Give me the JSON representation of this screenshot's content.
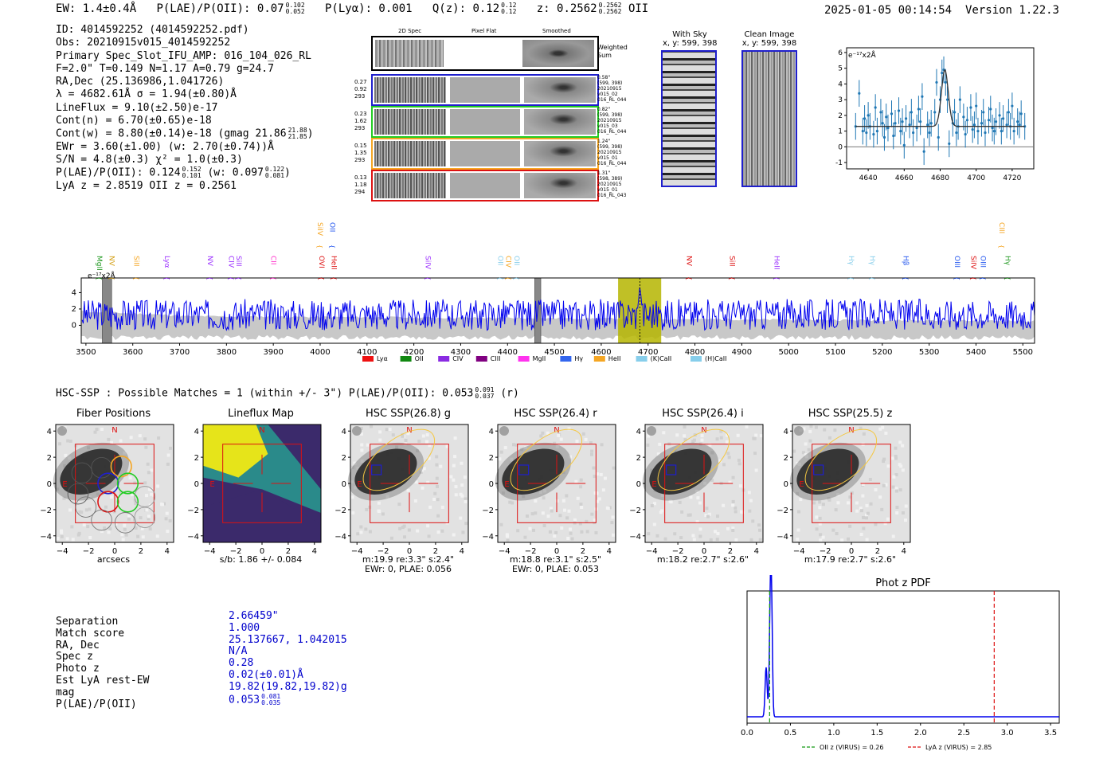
{
  "header": {
    "ew": "EW: 1.4±0.4Å",
    "plae_prefix": "P(LAE)/P(OII): 0.07",
    "plae_hi": "0.102",
    "plae_lo": "0.052",
    "plya": "P(Lyα): 0.001",
    "qz_prefix": "Q(z): 0.12",
    "qz_hi": "0.12",
    "qz_lo": "0.12",
    "z_prefix": "z: 0.2562",
    "z_hi": "0.2562",
    "z_lo": "0.2562",
    "z_line": "OII",
    "timestamp": "2025-01-05 00:14:54",
    "version": "Version 1.22.3"
  },
  "info": {
    "lines": [
      "ID: 4014592252 (4014592252.pdf)",
      "Obs: 20210915v015_4014592252",
      "Primary Spec_Slot_IFU_AMP: 016_104_026_RL",
      "F=2.0\"  T=0.149  N=1.17  A=0.79  g=24.7",
      "RA,Dec (25.136986,1.041726)",
      "λ = 4682.61Å  σ = 1.94(±0.80)Å",
      "LineFlux = 9.10(±2.50)e-17",
      "Cont(n) = 6.70(±0.65)e-18"
    ],
    "contw_prefix": "Cont(w) = 8.80(±0.14)e-18 (gmag 21.86",
    "contw_hi": "21.88",
    "contw_lo": "21.85",
    "contw_suffix": ")",
    "ewr": "EWr = 3.60(±1.00) (w: 2.70(±0.74))Å",
    "sn": "S/N = 4.8(±0.3)  χ² = 1.0(±0.3)",
    "plae2_prefix": "P(LAE)/P(OII): 0.124",
    "plae2_hi": "0.152",
    "plae2_lo": "0.101",
    "plae2_mid": "(w: 0.097",
    "plae2_hi2": "0.122",
    "plae2_lo2": "0.081",
    "plae2_suffix": ")",
    "lyaz": "LyA z = 2.8519  OII z = 0.2561"
  },
  "cutouts": {
    "col_2d": "2D Spec",
    "col_flat": "Pixel Flat",
    "col_smooth": "Smoothed",
    "weighted": "Weighted Sum",
    "rows": [
      {
        "l1": "0.27",
        "l2": "0.92",
        "l3": "293",
        "r1": "0.58\"",
        "r2": "(599, 398)",
        "r3": "20210915",
        "r4": "v015_02",
        "r5": "016_RL_044",
        "color": "#1f1fcc"
      },
      {
        "l1": "0.23",
        "l2": "1.62",
        "l3": "293",
        "r1": "0.82\"",
        "r2": "(599, 398)",
        "r3": "20210915",
        "r4": "v015_03",
        "r5": "016_RL_044",
        "color": "#22cc22"
      },
      {
        "l1": "0.15",
        "l2": "1.35",
        "l3": "293",
        "r1": "1.24\"",
        "r2": "(599, 398)",
        "r3": "20210915",
        "r4": "v015_01",
        "r5": "016_RL_044",
        "color": "#f5a623"
      },
      {
        "l1": "0.13",
        "l2": "1.18",
        "l3": "294",
        "r1": "1.31\"",
        "r2": "(598, 389)",
        "r3": "20210915",
        "r4": "v015_01",
        "r5": "016_RL_043",
        "color": "#dd1111"
      }
    ],
    "with_sky_title": "With Sky",
    "with_sky_xy": "x, y: 599, 398",
    "clean_title": "Clean Image",
    "clean_xy": "x, y: 599, 398"
  },
  "line_plot": {
    "ylabel": "e⁻¹⁷x2Å",
    "xticks": [
      "4640",
      "4660",
      "4680",
      "4700",
      "4720"
    ],
    "yticks": [
      "6",
      "5",
      "4",
      "3",
      "2",
      "1",
      "0",
      "-1"
    ],
    "xlim": [
      4628,
      4732
    ],
    "ylim": [
      -1.4,
      6.3
    ],
    "points_x": [
      4633,
      4635,
      4637,
      4638,
      4639,
      4640,
      4641,
      4643,
      4644,
      4645,
      4647,
      4648,
      4649,
      4650,
      4651,
      4653,
      4654,
      4655,
      4657,
      4658,
      4659,
      4660,
      4661,
      4663,
      4664,
      4665,
      4667,
      4668,
      4669,
      4670,
      4671,
      4673,
      4674,
      4675,
      4677,
      4678,
      4679,
      4680,
      4681,
      4682,
      4683,
      4684,
      4685,
      4687,
      4688,
      4689,
      4690,
      4691,
      4693,
      4694,
      4695,
      4697,
      4698,
      4699,
      4700,
      4701,
      4703,
      4704,
      4705,
      4707,
      4708,
      4709,
      4710,
      4711,
      4713,
      4714,
      4715,
      4717,
      4718,
      4719,
      4720,
      4721,
      4723,
      4724,
      4725,
      4727
    ],
    "points_y": [
      1.3,
      3.4,
      1.0,
      1.8,
      0.9,
      2.0,
      1.3,
      0.8,
      2.5,
      1.0,
      2.2,
      1.5,
      0.6,
      1.9,
      1.2,
      2.1,
      0.7,
      1.5,
      2.3,
      1.0,
      1.6,
      0.1,
      1.8,
      1.4,
      2.2,
      0.9,
      1.2,
      2.4,
      1.6,
      3.2,
      -0.3,
      1.4,
      0.9,
      1.5,
      2.2,
      4.1,
      0.6,
      3.0,
      4.7,
      4.9,
      4.1,
      3.0,
      0.2,
      1.5,
      2.2,
      0.9,
      1.3,
      3.0,
      1.9,
      0.8,
      1.7,
      2.5,
      1.1,
      1.4,
      2.6,
      1.0,
      1.5,
      2.2,
      0.9,
      1.7,
      2.4,
      1.2,
      1.0,
      1.6,
      2.0,
      1.0,
      1.8,
      1.4,
      2.2,
      1.3,
      2.6,
      1.0,
      1.6,
      1.4,
      2.1,
      1.3
    ],
    "fit_baseline": 1.3,
    "fit_peak": 4.9,
    "fit_center": 4682.6,
    "fit_sigma": 1.9
  },
  "full_spec": {
    "ylabel": "e⁻¹⁷x2Å",
    "xticks": [
      "3500",
      "3600",
      "3700",
      "3800",
      "3900",
      "4000",
      "4100",
      "4200",
      "4300",
      "4400",
      "4500",
      "4600",
      "4700",
      "4800",
      "4900",
      "5000",
      "5100",
      "5200",
      "5300",
      "5400",
      "5500"
    ],
    "yticks": [
      "4",
      "2",
      "0"
    ],
    "xlim": [
      3490,
      5525
    ],
    "ylim": [
      -2.2,
      5.8
    ],
    "highlight_range": [
      4636,
      4728
    ],
    "line_center": 4682.6,
    "masked": [
      [
        3535,
        3555
      ],
      [
        4458,
        4471
      ]
    ],
    "top_labels": [
      {
        "t": "MgII",
        "x": 3519,
        "c": "#229922",
        "row": 0
      },
      {
        "t": "NV",
        "x": 3545,
        "c": "#d4a017",
        "row": 0
      },
      {
        "t": "SiII",
        "x": 3598,
        "c": "#f5a623",
        "row": 0
      },
      {
        "t": "Lyα",
        "x": 3663,
        "c": "#9b30ff",
        "row": 0
      },
      {
        "t": "NV",
        "x": 3755,
        "c": "#9b30ff",
        "row": 0
      },
      {
        "t": "CIV",
        "x": 3800,
        "c": "#9b30ff",
        "row": 0
      },
      {
        "t": "SiII",
        "x": 3816,
        "c": "#9b30ff",
        "row": 0
      },
      {
        "t": "CII",
        "x": 3890,
        "c": "#ff33cc",
        "row": 0
      },
      {
        "t": "SiIV",
        "x": 3990,
        "c": "#f5a623",
        "row": 1
      },
      {
        "t": "OVI",
        "x": 3993,
        "c": "#dd1111",
        "row": 0
      },
      {
        "t": "OII",
        "x": 4016,
        "c": "#2255ee",
        "row": 1
      },
      {
        "t": "HeII",
        "x": 4020,
        "c": "#dd1111",
        "row": 0
      },
      {
        "t": "SiIV",
        "x": 4220,
        "c": "#9b30ff",
        "row": 0
      },
      {
        "t": "OII",
        "x": 4375,
        "c": "#87ceeb",
        "row": 0
      },
      {
        "t": "CIV",
        "x": 4392,
        "c": "#f5a623",
        "row": 0
      },
      {
        "t": "OII",
        "x": 4410,
        "c": "#87ceeb",
        "row": 0
      },
      {
        "t": "NV",
        "x": 4778,
        "c": "#dd1111",
        "row": 0
      },
      {
        "t": "SiII",
        "x": 4870,
        "c": "#dd1111",
        "row": 0
      },
      {
        "t": "HeII",
        "x": 4965,
        "c": "#9b30ff",
        "row": 0
      },
      {
        "t": "Hγ",
        "x": 5124,
        "c": "#87ceeb",
        "row": 0
      },
      {
        "t": "Hγ",
        "x": 5169,
        "c": "#87ceeb",
        "row": 0
      },
      {
        "t": "Hβ",
        "x": 5240,
        "c": "#2255ee",
        "row": 0
      },
      {
        "t": "OIII",
        "x": 5350,
        "c": "#2255ee",
        "row": 0
      },
      {
        "t": "SiIV",
        "x": 5385,
        "c": "#dd1111",
        "row": 0
      },
      {
        "t": "OIII",
        "x": 5405,
        "c": "#2255ee",
        "row": 0
      },
      {
        "t": "CIII",
        "x": 5445,
        "c": "#f5a623",
        "row": 1
      },
      {
        "t": "Hγ",
        "x": 5458,
        "c": "#229922",
        "row": 0
      }
    ],
    "legend": [
      {
        "t": "Lyα",
        "c": "#ee1111"
      },
      {
        "t": "OII",
        "c": "#118811"
      },
      {
        "t": "CIV",
        "c": "#8a2be2"
      },
      {
        "t": "CIII",
        "c": "#800080"
      },
      {
        "t": "MgII",
        "c": "#ff33ee"
      },
      {
        "t": "Hγ",
        "c": "#3366ee"
      },
      {
        "t": "HeII",
        "c": "#f5a623"
      },
      {
        "t": "(K)CaII",
        "c": "#87ceeb"
      },
      {
        "t": "(H)CaII",
        "c": "#87ceeb"
      }
    ]
  },
  "hsc": {
    "title_prefix": "HSC-SSP : Possible Matches = 1 (within +/- 3\")  P(LAE)/P(OII): 0.053",
    "title_hi": "0.091",
    "title_lo": "0.037",
    "title_suffix": "(r)",
    "panels": [
      {
        "title": "Fiber Positions",
        "cap1": "arcsecs",
        "cap2": ""
      },
      {
        "title": "Lineflux Map",
        "cap1": "s/b: 1.86 +/- 0.084",
        "cap2": ""
      },
      {
        "title": "HSC SSP(26.8) g",
        "cap1": "m:19.9  re:3.3\"  s:2.4\"",
        "cap2": "EWr: 0, PLAE: 0.056"
      },
      {
        "title": "HSC SSP(26.4) r",
        "cap1": "m:18.8  re:3.1\"  s:2.5\"",
        "cap2": "EWr: 0, PLAE: 0.053"
      },
      {
        "title": "HSC SSP(26.4) i",
        "cap1": "m:18.2  re:2.7\"  s:2.6\"",
        "cap2": ""
      },
      {
        "title": "HSC SSP(25.5) z",
        "cap1": "m:17.9  re:2.7\"  s:2.6\"",
        "cap2": ""
      }
    ],
    "xticks": [
      "−4",
      "−2",
      "0",
      "2",
      "4"
    ],
    "yticks": [
      "4",
      "2",
      "0",
      "−2",
      "−4"
    ],
    "north": "N",
    "east": "E"
  },
  "match": {
    "labels": [
      "Separation",
      "Match score",
      "RA, Dec",
      "Spec z",
      "Photo z",
      "Est LyA rest-EW",
      "mag",
      "P(LAE)/P(OII)"
    ],
    "values": [
      "2.66459\"",
      "1.000",
      "25.137667, 1.042015",
      "N/A",
      "0.28",
      "0.02(±0.01)Å",
      "19.82(19.82,19.82)g"
    ],
    "plae_val": "0.053",
    "plae_hi": "0.081",
    "plae_lo": "0.035"
  },
  "photz": {
    "title": "Phot z PDF",
    "xticks": [
      "0.0",
      "0.5",
      "1.0",
      "1.5",
      "2.0",
      "2.5",
      "3.0",
      "3.5"
    ],
    "xlim": [
      0,
      3.6
    ],
    "oii_z": 0.26,
    "lya_z": 2.85,
    "legend_oii": "OII z (VIRUS) = 0.26",
    "legend_lya": "LyA z (VIRUS) = 2.85"
  },
  "colors": {
    "blue": "#1f77b4",
    "spec_blue": "#0000ee",
    "highlight": "#b5b500",
    "red": "#dd1111"
  }
}
